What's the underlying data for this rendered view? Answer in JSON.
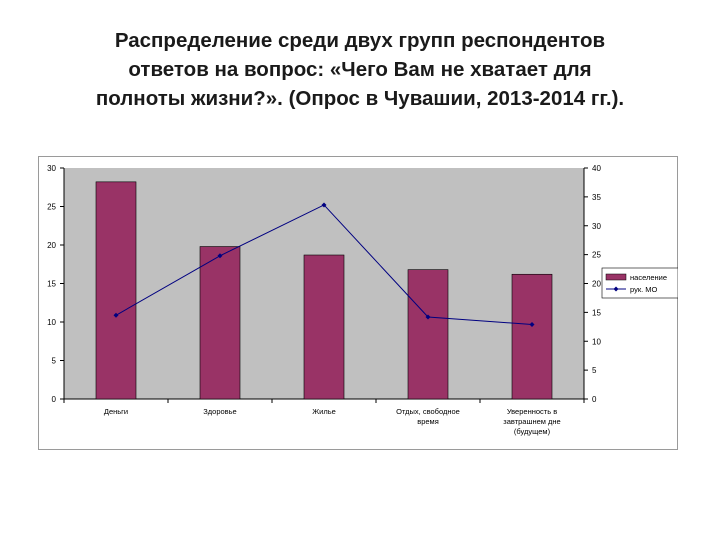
{
  "title": {
    "line1": "Распределение среди двух групп респондентов",
    "line2": "ответов на вопрос:  «Чего Вам не хватает для",
    "line3": "полноты жизни?». (Опрос в Чувашии, 2013-2014 гг.)."
  },
  "colors": {
    "bar": "#993366",
    "line": "#000080",
    "plot_bg": "#c0c0c0"
  },
  "chart_data": {
    "type": "bar",
    "categories": [
      "Деньги",
      "Здоровье",
      "Жилье",
      "Отдых, свободное время",
      "Уверенность в завтрашнем дне (будущем)"
    ],
    "category_lines": [
      [
        "Деньги"
      ],
      [
        "Здоровье"
      ],
      [
        "Жилье"
      ],
      [
        "Отдых, свободное",
        "время"
      ],
      [
        "Уверенность в",
        "завтрашнем дне",
        "(будущем)"
      ]
    ],
    "series": [
      {
        "name": "население",
        "type": "bar",
        "axis": "left",
        "values": [
          28.2,
          19.8,
          18.7,
          16.8,
          16.2
        ]
      },
      {
        "name": "рук. МО",
        "type": "line",
        "axis": "right",
        "values": [
          14.5,
          24.8,
          33.6,
          14.2,
          12.9
        ]
      }
    ],
    "y_left": {
      "min": 0,
      "max": 30,
      "ticks": [
        0,
        5,
        10,
        15,
        20,
        25,
        30
      ]
    },
    "y_right": {
      "min": 0,
      "max": 40,
      "ticks": [
        0,
        5,
        10,
        15,
        20,
        25,
        30,
        35,
        40
      ]
    },
    "legend": "right",
    "grid": false
  }
}
